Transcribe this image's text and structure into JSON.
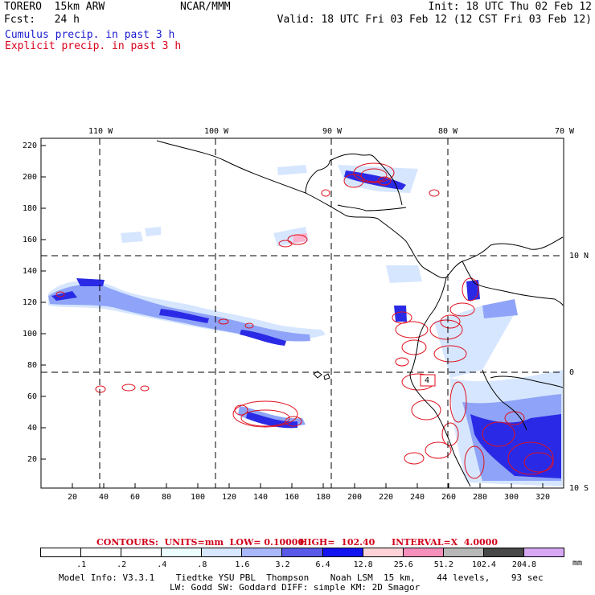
{
  "header": {
    "model": "TORERO  15km ARW",
    "org": "NCAR/MMM",
    "init": "Init: 18 UTC Thu 02 Feb 12",
    "fcst": "Fcst:   24 h",
    "valid": "Valid: 18 UTC Fri 03 Feb 12 (12 CST Fri 03 Feb 12)"
  },
  "legend": {
    "cumulus": "Cumulus precip. in past 3 h",
    "explicit": "Explicit precip. in past 3 h"
  },
  "axes": {
    "top_lon": [
      "110 W",
      "100 W",
      "90 W",
      "80 W",
      "70 W"
    ],
    "right_lat": [
      "10 N",
      "0",
      "10 S"
    ],
    "left_y": [
      "220",
      "200",
      "180",
      "160",
      "140",
      "120",
      "100",
      "80",
      "60",
      "40",
      "20"
    ],
    "bottom_x": [
      "20",
      "40",
      "60",
      "80",
      "100",
      "120",
      "140",
      "160",
      "180",
      "200",
      "220",
      "240",
      "260",
      "280",
      "300",
      "320"
    ]
  },
  "map": {
    "box_label": "4",
    "colors": {
      "cumulus_light": "#d6e6ff",
      "cumulus_mid": "#8fa4f8",
      "cumulus_dark": "#2a2ae6",
      "explicit_contour": "#e0101e",
      "explicit_fill": "#ffb3cc"
    }
  },
  "contours": {
    "units": "CONTOURS:  UNITS=mm  LOW= 0.10000",
    "high": "HIGH=  102.40",
    "interval": "INTERVAL=X  4.0000"
  },
  "colorbar": {
    "colors": [
      "#ffffff",
      "#ffffff",
      "#ffffff",
      "#ecfdfd",
      "#d6e7ff",
      "#a9b7fb",
      "#5a5ae8",
      "#1414f0",
      "#ffd3d8",
      "#f58fbb",
      "#b8b8b8",
      "#484848",
      "#d8a8f5"
    ],
    "labels": [
      ".1",
      ".2",
      ".4",
      ".8",
      "1.6",
      "3.2",
      "6.4",
      "12.8",
      "25.6",
      "51.2",
      "102.4",
      "204.8"
    ],
    "unit": "mm"
  },
  "footer": {
    "line1": "Model Info: V3.3.1    Tiedtke YSU PBL  Thompson    Noah LSM  15 km,    44 levels,    93 sec",
    "line2": "LW: Godd SW: Goddard DIFF: simple KM: 2D Smagor"
  }
}
